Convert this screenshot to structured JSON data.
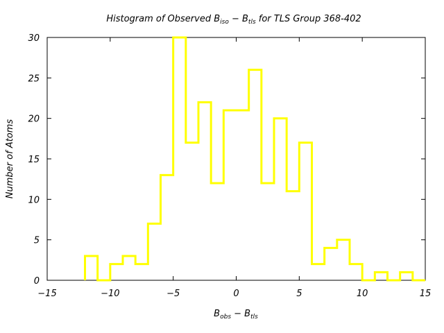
{
  "chart_data": {
    "type": "histogram",
    "title": {
      "prefix": "Histogram of Observed B",
      "sub1": "iso",
      "mid": " − B",
      "sub2": "tls",
      "suffix": "  for TLS Group 368-402"
    },
    "xlabel": {
      "a": "B",
      "a_sub": "obs",
      "mid": " − B",
      "b_sub": "tls"
    },
    "ylabel": "Number of Atoms",
    "xlim": [
      -15,
      15
    ],
    "ylim": [
      0,
      30
    ],
    "xticks": [
      -15,
      -10,
      -5,
      0,
      5,
      10,
      15
    ],
    "yticks": [
      0,
      5,
      10,
      15,
      20,
      25,
      30
    ],
    "bin_width": 1,
    "bin_start": -12,
    "values": [
      3,
      0,
      2,
      3,
      2,
      7,
      13,
      30,
      17,
      22,
      12,
      21,
      21,
      26,
      12,
      20,
      11,
      17,
      2,
      4,
      5,
      2,
      0,
      1,
      0,
      1,
      0
    ],
    "grid": false,
    "legend": "none",
    "color": "#ffff00"
  }
}
